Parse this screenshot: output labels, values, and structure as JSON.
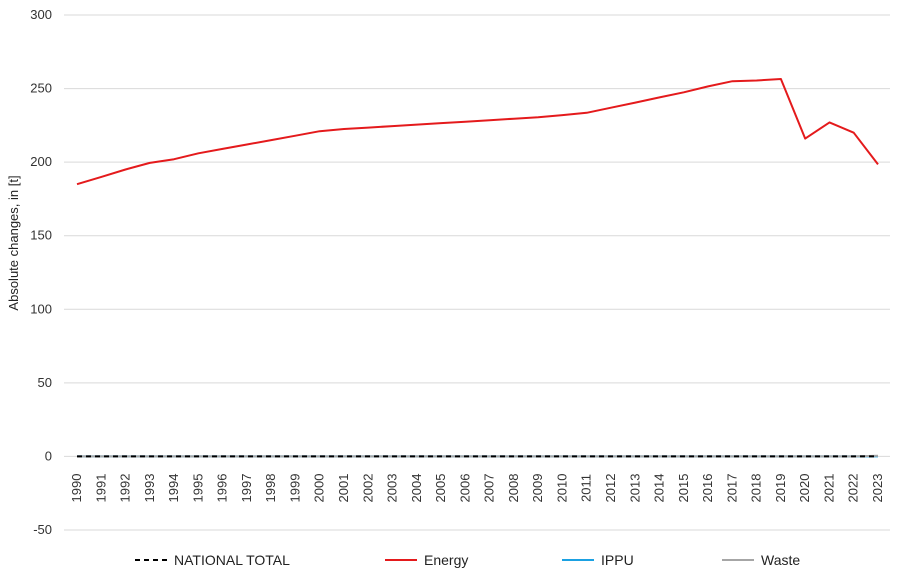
{
  "chart_data": {
    "type": "line",
    "title": "",
    "xlabel": "",
    "ylabel": "Absolute changes, in [t]",
    "ylim": [
      -50,
      300
    ],
    "yticks": [
      -50,
      0,
      50,
      100,
      150,
      200,
      250,
      300
    ],
    "grid": "horizontal",
    "legend_position": "bottom",
    "categories": [
      "1990",
      "1991",
      "1992",
      "1993",
      "1994",
      "1995",
      "1996",
      "1997",
      "1998",
      "1999",
      "2000",
      "2001",
      "2002",
      "2003",
      "2004",
      "2005",
      "2006",
      "2007",
      "2008",
      "2009",
      "2010",
      "2011",
      "2012",
      "2013",
      "2014",
      "2015",
      "2016",
      "2017",
      "2018",
      "2019",
      "2020",
      "2021",
      "2022",
      "2023"
    ],
    "series": [
      {
        "name": "NATIONAL TOTAL",
        "color": "#000000",
        "style": "dashed",
        "values": [
          0,
          0,
          0,
          0,
          0,
          0,
          0,
          0,
          0,
          0,
          0,
          0,
          0,
          0,
          0,
          0,
          0,
          0,
          0,
          0,
          0,
          0,
          0,
          0,
          0,
          0,
          0,
          0,
          0,
          0,
          0,
          0,
          0,
          0
        ]
      },
      {
        "name": "Energy",
        "color": "#e41a1c",
        "style": "solid",
        "values": [
          185,
          190,
          195,
          199.5,
          202,
          206,
          209,
          212,
          215,
          218,
          221,
          222.5,
          223.5,
          224.5,
          225.5,
          226.5,
          227.5,
          228.5,
          229.5,
          230.5,
          232,
          233.5,
          237,
          240.5,
          244,
          247.5,
          251.5,
          255,
          255.5,
          256.5,
          216,
          227,
          220,
          198.5
        ]
      },
      {
        "name": "IPPU",
        "color": "#1ba1e2",
        "style": "solid",
        "values": [
          0,
          0,
          0,
          0,
          0,
          0,
          0,
          0,
          0,
          0,
          0,
          0,
          0,
          0,
          0,
          0,
          0,
          0,
          0,
          0,
          0,
          0,
          0,
          0,
          0,
          0,
          0,
          0,
          0,
          0,
          0,
          0,
          0,
          0
        ]
      },
      {
        "name": "Waste",
        "color": "#a6a6a6",
        "style": "solid",
        "values": [
          0,
          0,
          0,
          0,
          0,
          0,
          0,
          0,
          0,
          0,
          0,
          0,
          0,
          0,
          0,
          0,
          0,
          0,
          0,
          0,
          0,
          0,
          0,
          0,
          0,
          0,
          0,
          0,
          0,
          0,
          0,
          0,
          0,
          0.5
        ]
      }
    ]
  }
}
